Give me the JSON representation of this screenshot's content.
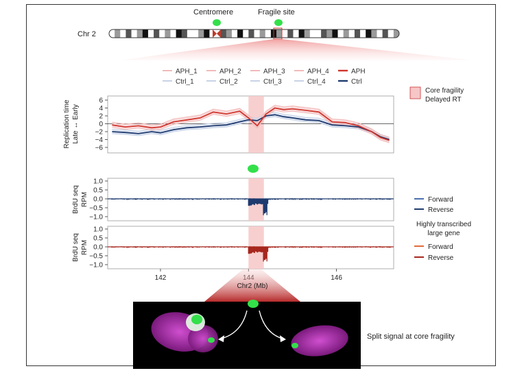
{
  "ideogram": {
    "chrom_label": "Chr 2",
    "centromere_label": "Centromere",
    "fragile_label": "Fragile site"
  },
  "legend": {
    "items": [
      {
        "label": "APH_1",
        "color": "#f2b9b9"
      },
      {
        "label": "APH_2",
        "color": "#f2b9b9"
      },
      {
        "label": "APH_3",
        "color": "#f2b9b9"
      },
      {
        "label": "APH_4",
        "color": "#f2b9b9"
      },
      {
        "label": "APH",
        "color": "#d0342c"
      },
      {
        "label": "Ctrl_1",
        "color": "#c8d3e6"
      },
      {
        "label": "Ctrl_2",
        "color": "#c8d3e6"
      },
      {
        "label": "Ctrl_3",
        "color": "#c8d3e6"
      },
      {
        "label": "Ctrl_4",
        "color": "#c8d3e6"
      },
      {
        "label": "Ctrl",
        "color": "#1e3a6e"
      }
    ],
    "core_fragility_line1": "Core fragility",
    "core_fragility_line2": "Delayed RT"
  },
  "rt_panel": {
    "ylabel_line1": "Replication time",
    "ylabel_line2": "Late ↔ Early",
    "yticks": [
      "6",
      "4",
      "2",
      "0",
      "−2",
      "−4",
      "−6"
    ]
  },
  "brdu_panels": {
    "ylabel_line1": "BrdU seq",
    "ylabel_line2": "RPM",
    "yticks": [
      "1.0",
      "0.5",
      "0.0",
      "−0.5",
      "−1.0"
    ],
    "blue_forward": "Forward",
    "blue_reverse": "Reverse",
    "gene_note_line1": "Highly transcribed",
    "gene_note_line2": "large gene",
    "red_forward": "Forward",
    "red_reverse": "Reverse"
  },
  "xaxis": {
    "ticks": [
      "142",
      "144",
      "146"
    ],
    "label": "Chr2 (Mb)"
  },
  "micrograph": {
    "caption": "Split signal at core fragility"
  },
  "colors": {
    "aph": "#d0342c",
    "ctrl": "#1e3a6e",
    "highlight": "#f7c7c7",
    "fish_green": "#33e04a",
    "nucleus": "#c23fc4"
  },
  "chart_data": {
    "type": "line",
    "x_unit": "Mb",
    "xlim": [
      140.8,
      147.3
    ],
    "ylim": [
      -6,
      6
    ],
    "core_fragility_region": [
      144.0,
      144.35
    ],
    "series": [
      {
        "name": "APH",
        "x": [
          140.9,
          141.2,
          141.5,
          141.8,
          142.0,
          142.3,
          142.6,
          142.9,
          143.2,
          143.5,
          143.8,
          144.0,
          144.2,
          144.4,
          144.6,
          144.8,
          145.0,
          145.3,
          145.6,
          145.9,
          146.2,
          146.5,
          146.8,
          147.0,
          147.2
        ],
        "y": [
          -0.3,
          -0.8,
          -0.5,
          -1.0,
          -0.8,
          0.5,
          1.0,
          1.5,
          3.0,
          2.5,
          3.2,
          1.5,
          -0.5,
          2.5,
          4.0,
          3.6,
          3.8,
          3.4,
          3.0,
          0.5,
          0.3,
          -0.5,
          -2.0,
          -3.5,
          -4.2
        ]
      },
      {
        "name": "Ctrl",
        "x": [
          140.9,
          141.2,
          141.5,
          141.8,
          142.0,
          142.3,
          142.6,
          142.9,
          143.2,
          143.5,
          143.8,
          144.0,
          144.2,
          144.4,
          144.6,
          144.8,
          145.0,
          145.3,
          145.6,
          145.9,
          146.2,
          146.5,
          146.8,
          147.0,
          147.2
        ],
        "y": [
          -2.0,
          -2.2,
          -2.5,
          -2.0,
          -2.3,
          -1.5,
          -1.0,
          -0.8,
          -0.5,
          -0.3,
          0.5,
          1.0,
          0.8,
          2.0,
          2.3,
          1.8,
          1.5,
          1.0,
          0.8,
          -0.3,
          -0.5,
          -0.8,
          -2.0,
          -3.3,
          -4.0
        ]
      }
    ],
    "brdu_blue_reverse_dip": [
      144.0,
      144.45,
      -1.0
    ],
    "brdu_red_reverse_dip": [
      144.0,
      144.45,
      -0.9
    ]
  }
}
